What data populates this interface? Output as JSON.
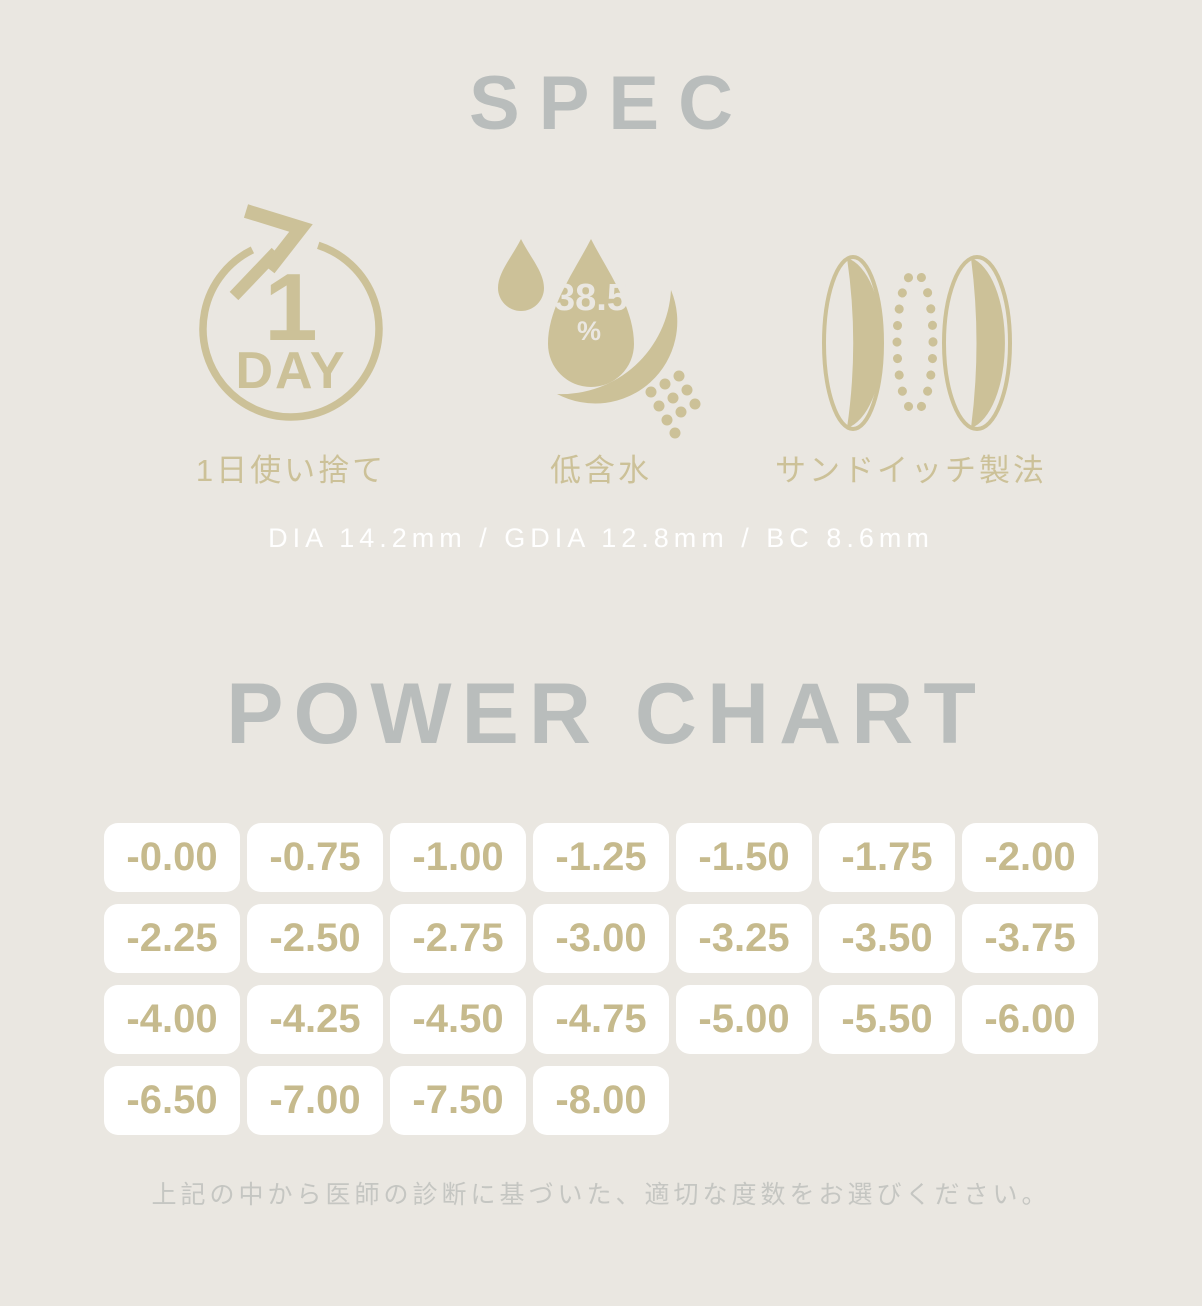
{
  "colors": {
    "background": "#EAE7E1",
    "accent": "#CCC198",
    "accent-deep": "#C6BA8D",
    "heading": "#B9BDBC",
    "white": "#FFFFFF",
    "note": "#C5C6C2"
  },
  "spec": {
    "title": "SPEC",
    "features": [
      {
        "id": "one-day",
        "icon": "one-day-cycle-icon",
        "icon_number": "1",
        "icon_word": "DAY",
        "label": "1日使い捨て"
      },
      {
        "id": "low-water",
        "icon": "water-drop-icon",
        "water_content_value": "38.5",
        "water_content_unit": "%",
        "label": "低含水"
      },
      {
        "id": "sandwich",
        "icon": "sandwich-lens-icon",
        "label": "サンドイッチ製法"
      }
    ],
    "dimensions_line": "DIA 14.2mm / GDIA 12.8mm / BC 8.6mm"
  },
  "power_chart": {
    "title": "POWER CHART",
    "values": [
      "-0.00",
      "-0.75",
      "-1.00",
      "-1.25",
      "-1.50",
      "-1.75",
      "-2.00",
      "-2.25",
      "-2.50",
      "-2.75",
      "-3.00",
      "-3.25",
      "-3.50",
      "-3.75",
      "-4.00",
      "-4.25",
      "-4.50",
      "-4.75",
      "-5.00",
      "-5.50",
      "-6.00",
      "-6.50",
      "-7.00",
      "-7.50",
      "-8.00"
    ],
    "note": "上記の中から医師の診断に基づいた、適切な度数をお選びください。"
  }
}
